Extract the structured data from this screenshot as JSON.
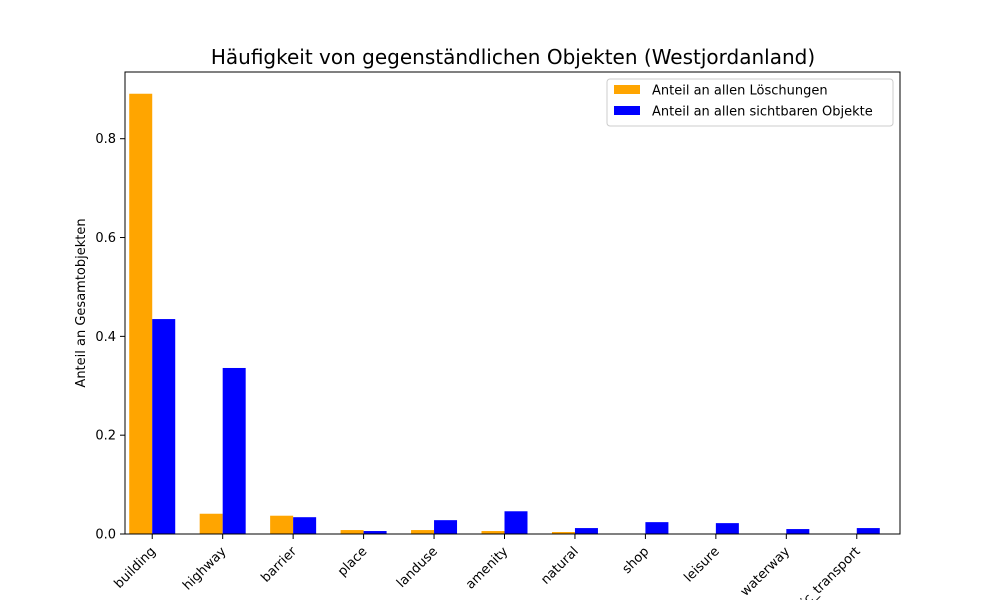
{
  "chart_data": {
    "type": "bar",
    "title": "Häufigkeit von gegenständlichen Objekten (Westjordanland)",
    "xlabel": "",
    "ylabel": "Anteil an Gesamtobjekten",
    "ylim": [
      0,
      0.935
    ],
    "yticks": [
      "0.0",
      "0.2",
      "0.4",
      "0.6",
      "0.8"
    ],
    "categories": [
      "building",
      "highway",
      "barrier",
      "place",
      "landuse",
      "amenity",
      "natural",
      "shop",
      "leisure",
      "waterway",
      "public_transport"
    ],
    "series": [
      {
        "name": "Anteil an allen Löschungen",
        "color": "#ffa500",
        "values": [
          0.891,
          0.041,
          0.037,
          0.008,
          0.008,
          0.006,
          0.004,
          0.0,
          0.0,
          0.0,
          0.0
        ]
      },
      {
        "name": "Anteil an allen sichtbaren Objekte",
        "color": "#0000ff",
        "values": [
          0.435,
          0.336,
          0.034,
          0.006,
          0.028,
          0.046,
          0.012,
          0.024,
          0.022,
          0.01,
          0.012
        ]
      }
    ],
    "legend_position": "upper right",
    "grid": false
  }
}
